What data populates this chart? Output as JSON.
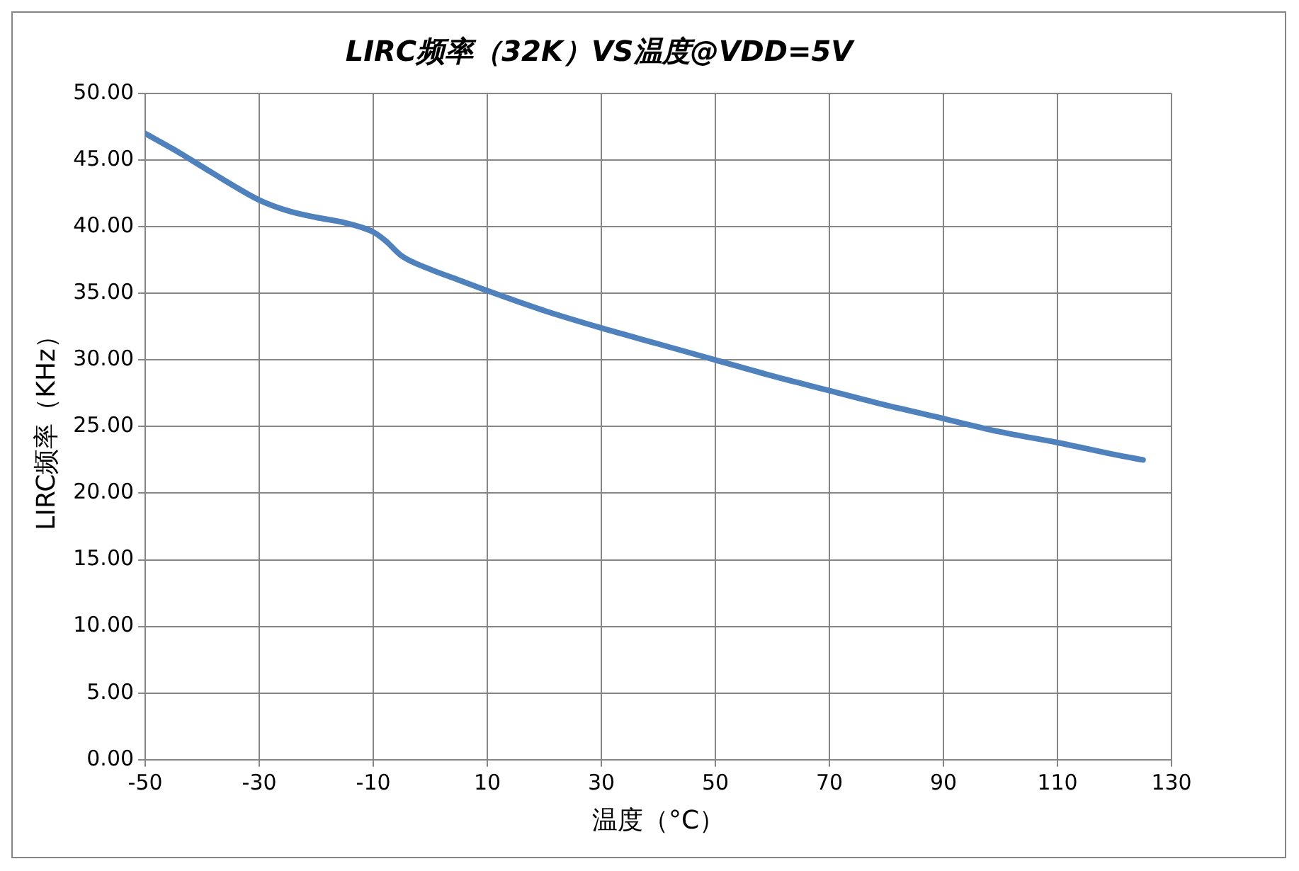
{
  "chart_data": {
    "type": "line",
    "title": "LIRC频率（32K）VS温度@VDD=5V",
    "xlabel": "温度（°C）",
    "ylabel": "LIRC频率（KHz）",
    "x": [
      -50,
      -45,
      -40,
      -35,
      -30,
      -25,
      -20,
      -15,
      -10,
      -8,
      -5,
      0,
      5,
      10,
      20,
      30,
      40,
      50,
      60,
      70,
      80,
      90,
      100,
      110,
      120,
      125
    ],
    "series": [
      {
        "color": "#4f81bd",
        "values": [
          47.0,
          45.8,
          44.5,
          43.2,
          42.0,
          41.2,
          40.7,
          40.3,
          39.6,
          39.0,
          37.8,
          36.8,
          36.0,
          35.2,
          33.7,
          32.4,
          31.2,
          30.0,
          28.8,
          27.7,
          26.6,
          25.6,
          24.6,
          23.8,
          22.9,
          22.5
        ]
      }
    ],
    "xlim": [
      -50,
      130
    ],
    "xticks": [
      -50,
      -30,
      -10,
      10,
      30,
      50,
      70,
      90,
      110,
      130
    ],
    "ylim": [
      0,
      50
    ],
    "yticks": [
      {
        "value": 0,
        "label": "0.00"
      },
      {
        "value": 5,
        "label": "5.00"
      },
      {
        "value": 10,
        "label": "10.00"
      },
      {
        "value": 15,
        "label": "15.00"
      },
      {
        "value": 20,
        "label": "20.00"
      },
      {
        "value": 25,
        "label": "25.00"
      },
      {
        "value": 30,
        "label": "30.00"
      },
      {
        "value": 35,
        "label": "35.00"
      },
      {
        "value": 40,
        "label": "40.00"
      },
      {
        "value": 45,
        "label": "45.00"
      },
      {
        "value": 50,
        "label": "50.00"
      }
    ],
    "grid": true,
    "legend": false,
    "marker": "none",
    "line_style": "solid"
  }
}
